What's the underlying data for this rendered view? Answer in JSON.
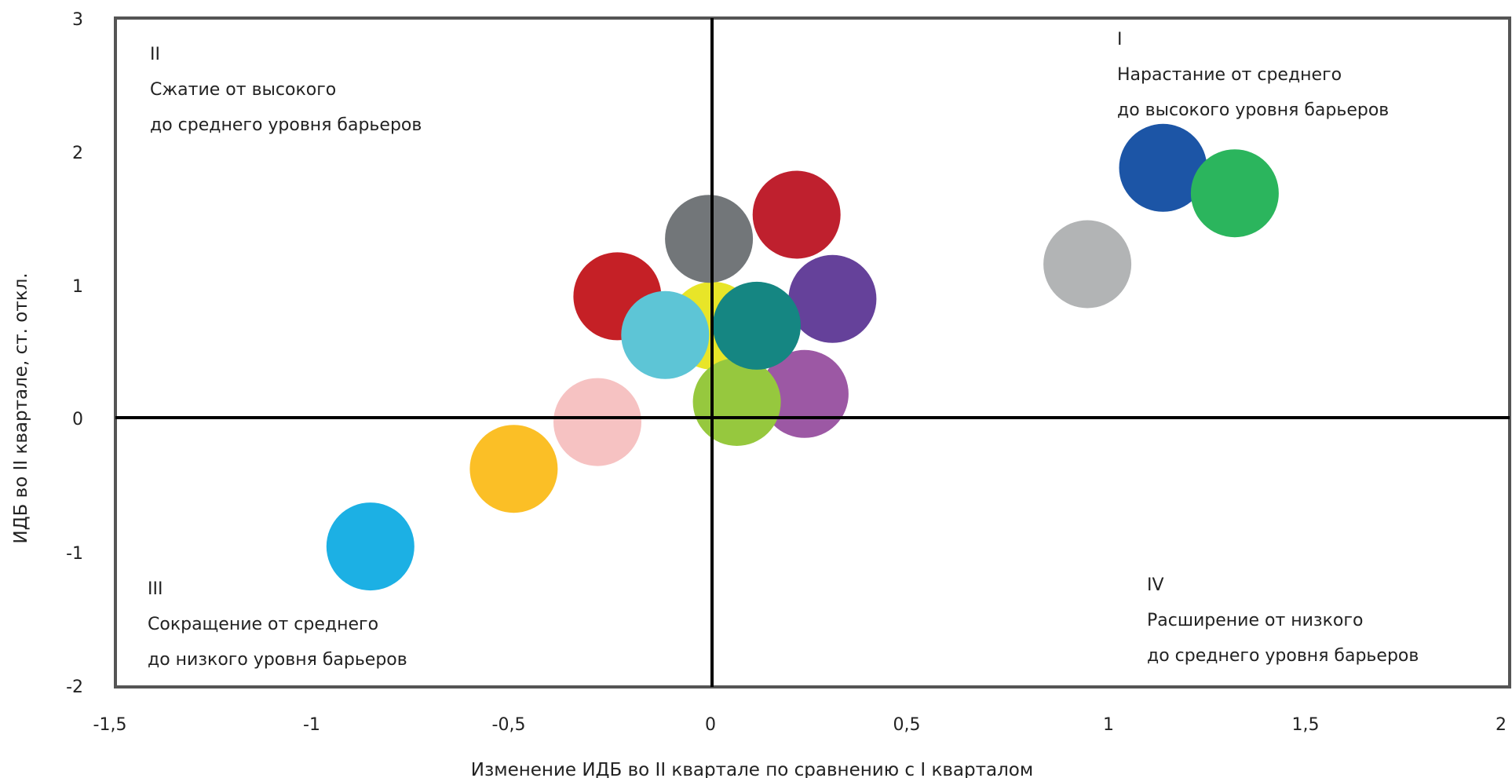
{
  "chart_data": {
    "type": "scatter",
    "xlabel": "Изменение ИДБ во II квартале по сравнению с I кварталом",
    "ylabel": "ИДБ во II квартале, ст. откл.",
    "xlim": [
      -1.5,
      2
    ],
    "ylim": [
      -2,
      3
    ],
    "x_ticks": [
      "-1,5",
      "-1",
      "-0,5",
      "0",
      "0,5",
      "1",
      "1,5",
      "2"
    ],
    "y_ticks": [
      "3",
      "2",
      "1",
      "0",
      "-1",
      "-2"
    ],
    "grid": false,
    "quadrants": [
      {
        "numeral": "I",
        "line1": "Нарастание от среднего",
        "line2": "до высокого уровня барьеров"
      },
      {
        "numeral": "II",
        "line1": "Сжатие от высокого",
        "line2": "до среднего уровня барьеров"
      },
      {
        "numeral": "III",
        "line1": "Сокращение от среднего",
        "line2": "до низкого уровня барьеров"
      },
      {
        "numeral": "IV",
        "line1": "Расширение от низкого",
        "line2": "до среднего уровня барьеров"
      }
    ],
    "points": [
      {
        "x": -0.86,
        "y": -0.95,
        "color": "#1cb0e4"
      },
      {
        "x": -0.5,
        "y": -0.37,
        "color": "#fbbf26"
      },
      {
        "x": -0.29,
        "y": -0.02,
        "color": "#f6c2c2"
      },
      {
        "x": -0.24,
        "y": 0.92,
        "color": "#c52026"
      },
      {
        "x": 0.0,
        "y": 0.7,
        "color": "#e8e528"
      },
      {
        "x": 0.23,
        "y": 0.19,
        "color": "#9c58a4"
      },
      {
        "x": 0.06,
        "y": 0.13,
        "color": "#96c83e"
      },
      {
        "x": -0.12,
        "y": 0.63,
        "color": "#5dc5d6"
      },
      {
        "x": -0.01,
        "y": 1.35,
        "color": "#727679"
      },
      {
        "x": 0.21,
        "y": 1.53,
        "color": "#bf202e"
      },
      {
        "x": 0.3,
        "y": 0.9,
        "color": "#65419a"
      },
      {
        "x": 0.11,
        "y": 0.7,
        "color": "#158682"
      },
      {
        "x": 0.94,
        "y": 1.16,
        "color": "#b2b4b5"
      },
      {
        "x": 1.13,
        "y": 1.88,
        "color": "#1c55a6"
      },
      {
        "x": 1.31,
        "y": 1.69,
        "color": "#2bb55d"
      }
    ]
  }
}
